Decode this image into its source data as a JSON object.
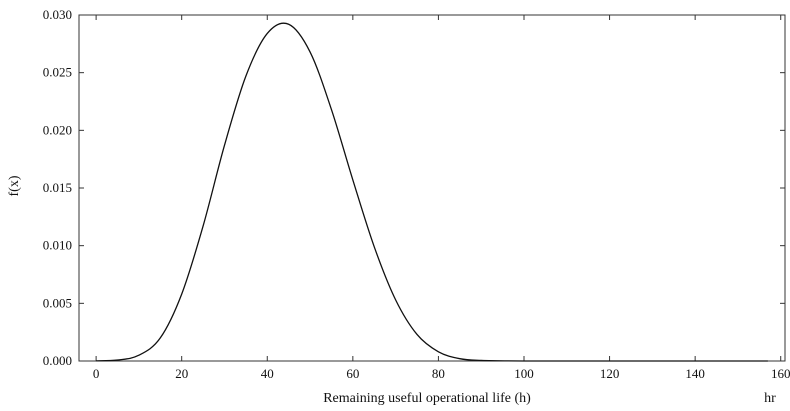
{
  "chart_data": {
    "type": "line",
    "title": "",
    "xlabel": "Remaining useful operational life (h)",
    "ylabel": "f(x)",
    "x_unit_label": "hr",
    "xlim": [
      -4,
      161
    ],
    "ylim": [
      0,
      0.03
    ],
    "xticks": [
      0,
      20,
      40,
      60,
      80,
      100,
      120,
      140,
      160
    ],
    "xtick_labels": [
      "0",
      "20",
      "40",
      "60",
      "80",
      "100",
      "120",
      "140",
      "160"
    ],
    "yticks": [
      0,
      0.005,
      0.01,
      0.015,
      0.02,
      0.025,
      0.03
    ],
    "ytick_labels": [
      "0.000",
      "0.005",
      "0.010",
      "0.015",
      "0.020",
      "0.025",
      "0.030"
    ],
    "grid": false,
    "legend": "none",
    "series": [
      {
        "x": [
          0,
          5,
          10,
          15,
          20,
          25,
          30,
          35,
          40,
          45,
          50,
          55,
          60,
          65,
          70,
          75,
          80,
          85,
          90,
          100,
          120,
          140,
          157
        ],
        "y": [
          1e-05,
          8e-05,
          0.0005,
          0.002,
          0.0058,
          0.0117,
          0.0187,
          0.0247,
          0.0284,
          0.0292,
          0.0268,
          0.0218,
          0.0157,
          0.0099,
          0.0053,
          0.0023,
          0.0008,
          0.0002,
          5e-05,
          0.0,
          0.0,
          0.0,
          0.0
        ]
      }
    ],
    "colors": {
      "line": "#111111",
      "axes": "#333333"
    }
  }
}
